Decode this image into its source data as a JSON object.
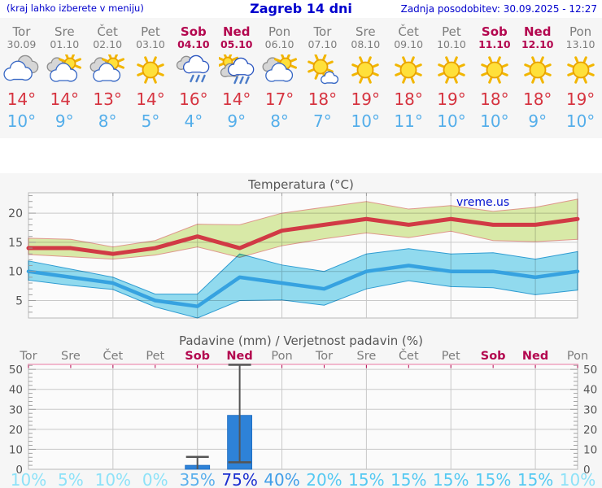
{
  "header": {
    "location_hint": "(kraj lahko izberete v meniju)",
    "title": "Zagreb 14 dni",
    "last_update": "Zadnja posodobitev: 30.09.2025 - 12:27"
  },
  "watermark": "vreme.us",
  "days": [
    {
      "name": "Tor",
      "date": "30.09",
      "weekend": false,
      "icon": "cloudy",
      "tmax": "14°",
      "tmin": "10°",
      "precip_prob": "10%",
      "prob_color": "#8ee2f8"
    },
    {
      "name": "Sre",
      "date": "01.10",
      "weekend": false,
      "icon": "partly-cloudy",
      "tmax": "14°",
      "tmin": "9°",
      "precip_prob": "5%",
      "prob_color": "#8ee2f8"
    },
    {
      "name": "Čet",
      "date": "02.10",
      "weekend": false,
      "icon": "partly-cloudy",
      "tmax": "13°",
      "tmin": "8°",
      "precip_prob": "10%",
      "prob_color": "#8ee2f8"
    },
    {
      "name": "Pet",
      "date": "03.10",
      "weekend": false,
      "icon": "sunny",
      "tmax": "14°",
      "tmin": "5°",
      "precip_prob": "0%",
      "prob_color": "#8ee2f8"
    },
    {
      "name": "Sob",
      "date": "04.10",
      "weekend": true,
      "icon": "rain",
      "tmax": "16°",
      "tmin": "4°",
      "precip_prob": "35%",
      "prob_color": "#5cb0ec"
    },
    {
      "name": "Ned",
      "date": "05.10",
      "weekend": true,
      "icon": "sun-rain",
      "tmax": "14°",
      "tmin": "9°",
      "precip_prob": "75%",
      "prob_color": "#1b2ed0"
    },
    {
      "name": "Pon",
      "date": "06.10",
      "weekend": false,
      "icon": "partly-cloudy",
      "tmax": "17°",
      "tmin": "8°",
      "precip_prob": "40%",
      "prob_color": "#3f9de8"
    },
    {
      "name": "Tor",
      "date": "07.10",
      "weekend": false,
      "icon": "mostly-sunny",
      "tmax": "18°",
      "tmin": "7°",
      "precip_prob": "20%",
      "prob_color": "#55c9f2"
    },
    {
      "name": "Sre",
      "date": "08.10",
      "weekend": false,
      "icon": "sunny",
      "tmax": "19°",
      "tmin": "10°",
      "precip_prob": "15%",
      "prob_color": "#55c9f2"
    },
    {
      "name": "Čet",
      "date": "09.10",
      "weekend": false,
      "icon": "sunny",
      "tmax": "18°",
      "tmin": "11°",
      "precip_prob": "15%",
      "prob_color": "#55c9f2"
    },
    {
      "name": "Pet",
      "date": "10.10",
      "weekend": false,
      "icon": "sunny",
      "tmax": "19°",
      "tmin": "10°",
      "precip_prob": "15%",
      "prob_color": "#55c9f2"
    },
    {
      "name": "Sob",
      "date": "11.10",
      "weekend": true,
      "icon": "sunny",
      "tmax": "18°",
      "tmin": "10°",
      "precip_prob": "15%",
      "prob_color": "#55c9f2"
    },
    {
      "name": "Ned",
      "date": "12.10",
      "weekend": true,
      "icon": "sunny",
      "tmax": "18°",
      "tmin": "9°",
      "precip_prob": "15%",
      "prob_color": "#55c9f2"
    },
    {
      "name": "Pon",
      "date": "13.10",
      "weekend": false,
      "icon": "sunny",
      "tmax": "19°",
      "tmin": "10°",
      "precip_prob": "10%",
      "prob_color": "#8ee2f8"
    }
  ],
  "chart_data": [
    {
      "type": "line",
      "title": "Temperatura (°C)",
      "categories": [
        "Tor 30.09",
        "Sre 01.10",
        "Čet 02.10",
        "Pet 03.10",
        "Sob 04.10",
        "Ned 05.10",
        "Pon 06.10",
        "Tor 07.10",
        "Sre 08.10",
        "Čet 09.10",
        "Pet 10.10",
        "Sob 11.10",
        "Ned 12.10",
        "Pon 13.10"
      ],
      "ylim": [
        2,
        23.5
      ],
      "yticks": [
        5,
        10,
        15,
        20
      ],
      "grid": true,
      "series": [
        {
          "name": "max temperature",
          "values": [
            14,
            14,
            13,
            14,
            16,
            14,
            17,
            18,
            19,
            18,
            19,
            18,
            18,
            19
          ]
        },
        {
          "name": "max range upper",
          "values": [
            15.7,
            15.5,
            14.2,
            15.3,
            18.1,
            18.0,
            20.0,
            21.0,
            22.0,
            20.7,
            21.3,
            20.3,
            21.0,
            22.4
          ]
        },
        {
          "name": "max range lower",
          "values": [
            12.9,
            12.5,
            12.1,
            12.8,
            14.2,
            12.4,
            14.4,
            15.6,
            16.6,
            15.8,
            16.9,
            15.3,
            15.1,
            15.5
          ]
        },
        {
          "name": "min temperature",
          "values": [
            10,
            9,
            8,
            5,
            4,
            9,
            8,
            7,
            10,
            11,
            10,
            10,
            9,
            10
          ]
        },
        {
          "name": "min range upper",
          "values": [
            11.8,
            10.4,
            9.0,
            6.1,
            6.1,
            13.0,
            11.1,
            10.0,
            13.0,
            13.9,
            13.0,
            13.2,
            12.1,
            13.4
          ]
        },
        {
          "name": "min range lower",
          "values": [
            8.5,
            7.6,
            6.9,
            3.9,
            2.0,
            5.0,
            5.1,
            4.2,
            7.0,
            8.4,
            7.4,
            7.2,
            6.0,
            6.8
          ]
        }
      ]
    },
    {
      "type": "bar",
      "title": "Padavine (mm) / Verjetnost padavin (%)",
      "categories": [
        "Tor",
        "Sre",
        "Čet",
        "Pet",
        "Sob",
        "Ned",
        "Pon",
        "Tor",
        "Sre",
        "Čet",
        "Pet",
        "Sob",
        "Ned",
        "Pon"
      ],
      "values_mm": [
        0,
        0,
        0,
        0,
        2,
        27,
        0,
        0,
        0,
        0,
        0,
        0,
        0,
        0
      ],
      "whiskers": [
        {
          "day_index": 4,
          "lo": 0,
          "hi": 6.2
        },
        {
          "day_index": 5,
          "lo": 3.5,
          "hi": 52.3
        }
      ],
      "probability_pct": [
        10,
        5,
        10,
        0,
        35,
        75,
        40,
        20,
        15,
        15,
        15,
        15,
        15,
        10
      ],
      "ylim": [
        0,
        52.5
      ],
      "yticks": [
        0,
        10,
        20,
        30,
        40,
        50
      ],
      "grid": true
    }
  ],
  "colors": {
    "header_blue": "#0000cd",
    "weekday_gray": "#7c7c7c",
    "weekend_crimson": "#b3074f",
    "max_temp_red": "#d63440",
    "min_temp_blue": "#54aeea",
    "max_line": "#d13a45",
    "min_line": "#36a2e0",
    "max_band_fill": "#dcedaa",
    "max_band_edge": "#e39a8e",
    "min_band_fill": "#93def2",
    "min_band_edge": "#2f9fd6",
    "bar_blue": "#2e82d8",
    "whisker_gray": "#555555",
    "grid_gray": "#c9c9c9",
    "plot_border": "#b8b8b8",
    "top_border_pink": "#f0a3bf",
    "axis_text": "#555555",
    "watermark_blue": "#0010d0"
  }
}
